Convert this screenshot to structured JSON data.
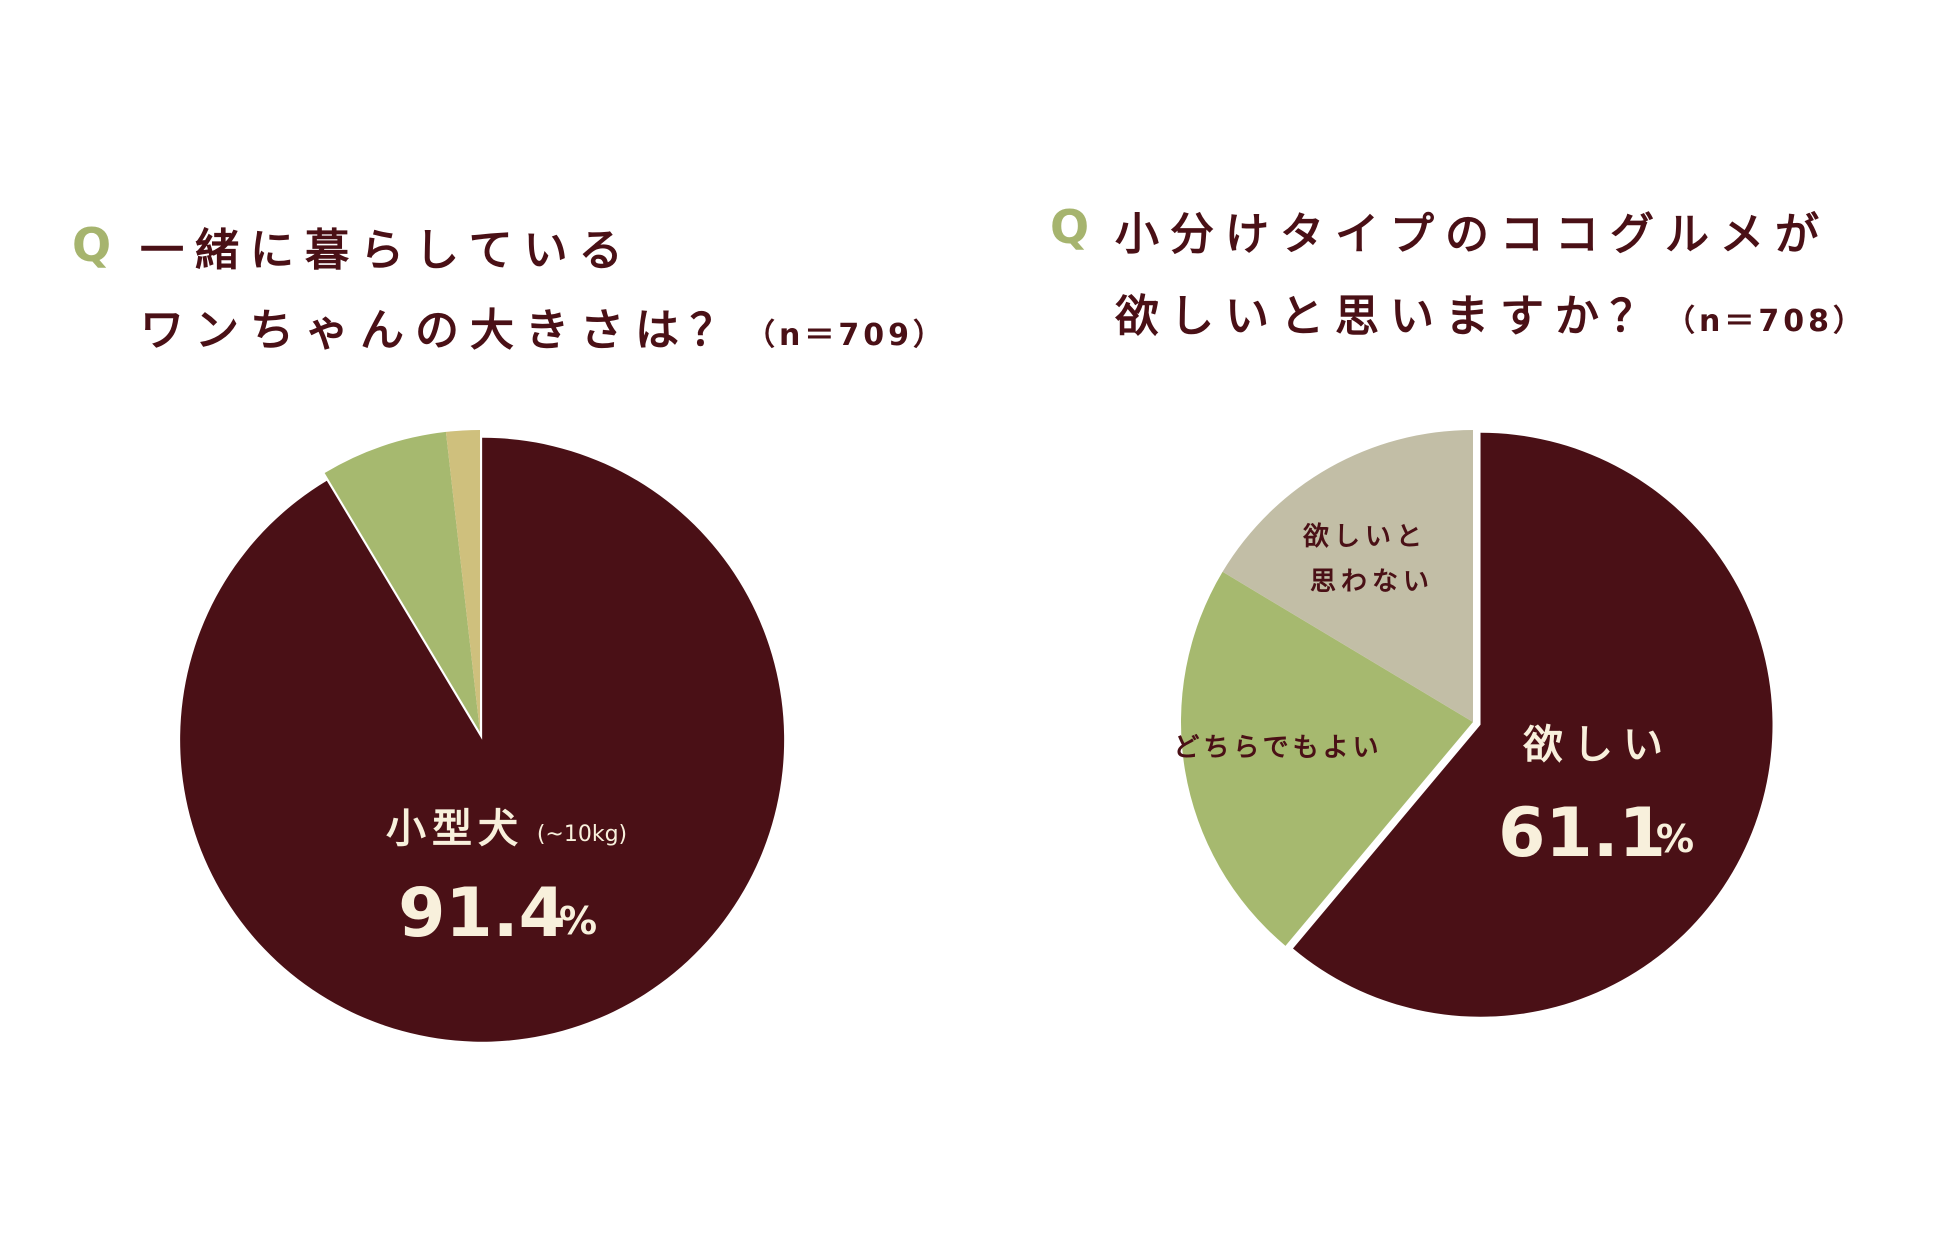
{
  "colors": {
    "dark": "#4a1016",
    "green": "#a6b96f",
    "tan": "#cfc07d",
    "grey": "#c2bea6",
    "cream": "#f8f0dc",
    "accent_q": "#a6b46e"
  },
  "chart_data": [
    {
      "type": "pie",
      "question_mark": "Q",
      "title_lines": [
        "一緒に暮らしている",
        "ワンちゃんの大きさは？"
      ],
      "n_label": "（n＝709）",
      "slices": [
        {
          "value": 91.4,
          "color_key": "dark",
          "label": "小型犬",
          "sublabel": "(~10kg)",
          "value_label": "91.4",
          "unit": "%"
        },
        {
          "value": 6.8,
          "color_key": "green"
        },
        {
          "value": 1.8,
          "color_key": "tan"
        }
      ]
    },
    {
      "type": "pie",
      "question_mark": "Q",
      "title_lines": [
        "小分けタイプのココグルメが",
        "欲しいと思いますか？"
      ],
      "n_label": "（n＝708）",
      "slices": [
        {
          "value": 61.1,
          "color_key": "dark",
          "label": "欲しい",
          "value_label": "61.1",
          "unit": "%"
        },
        {
          "value": 22.5,
          "color_key": "green",
          "label": "どちらでもよい"
        },
        {
          "value": 16.4,
          "color_key": "grey",
          "label": "欲しいと思わない"
        }
      ]
    }
  ]
}
